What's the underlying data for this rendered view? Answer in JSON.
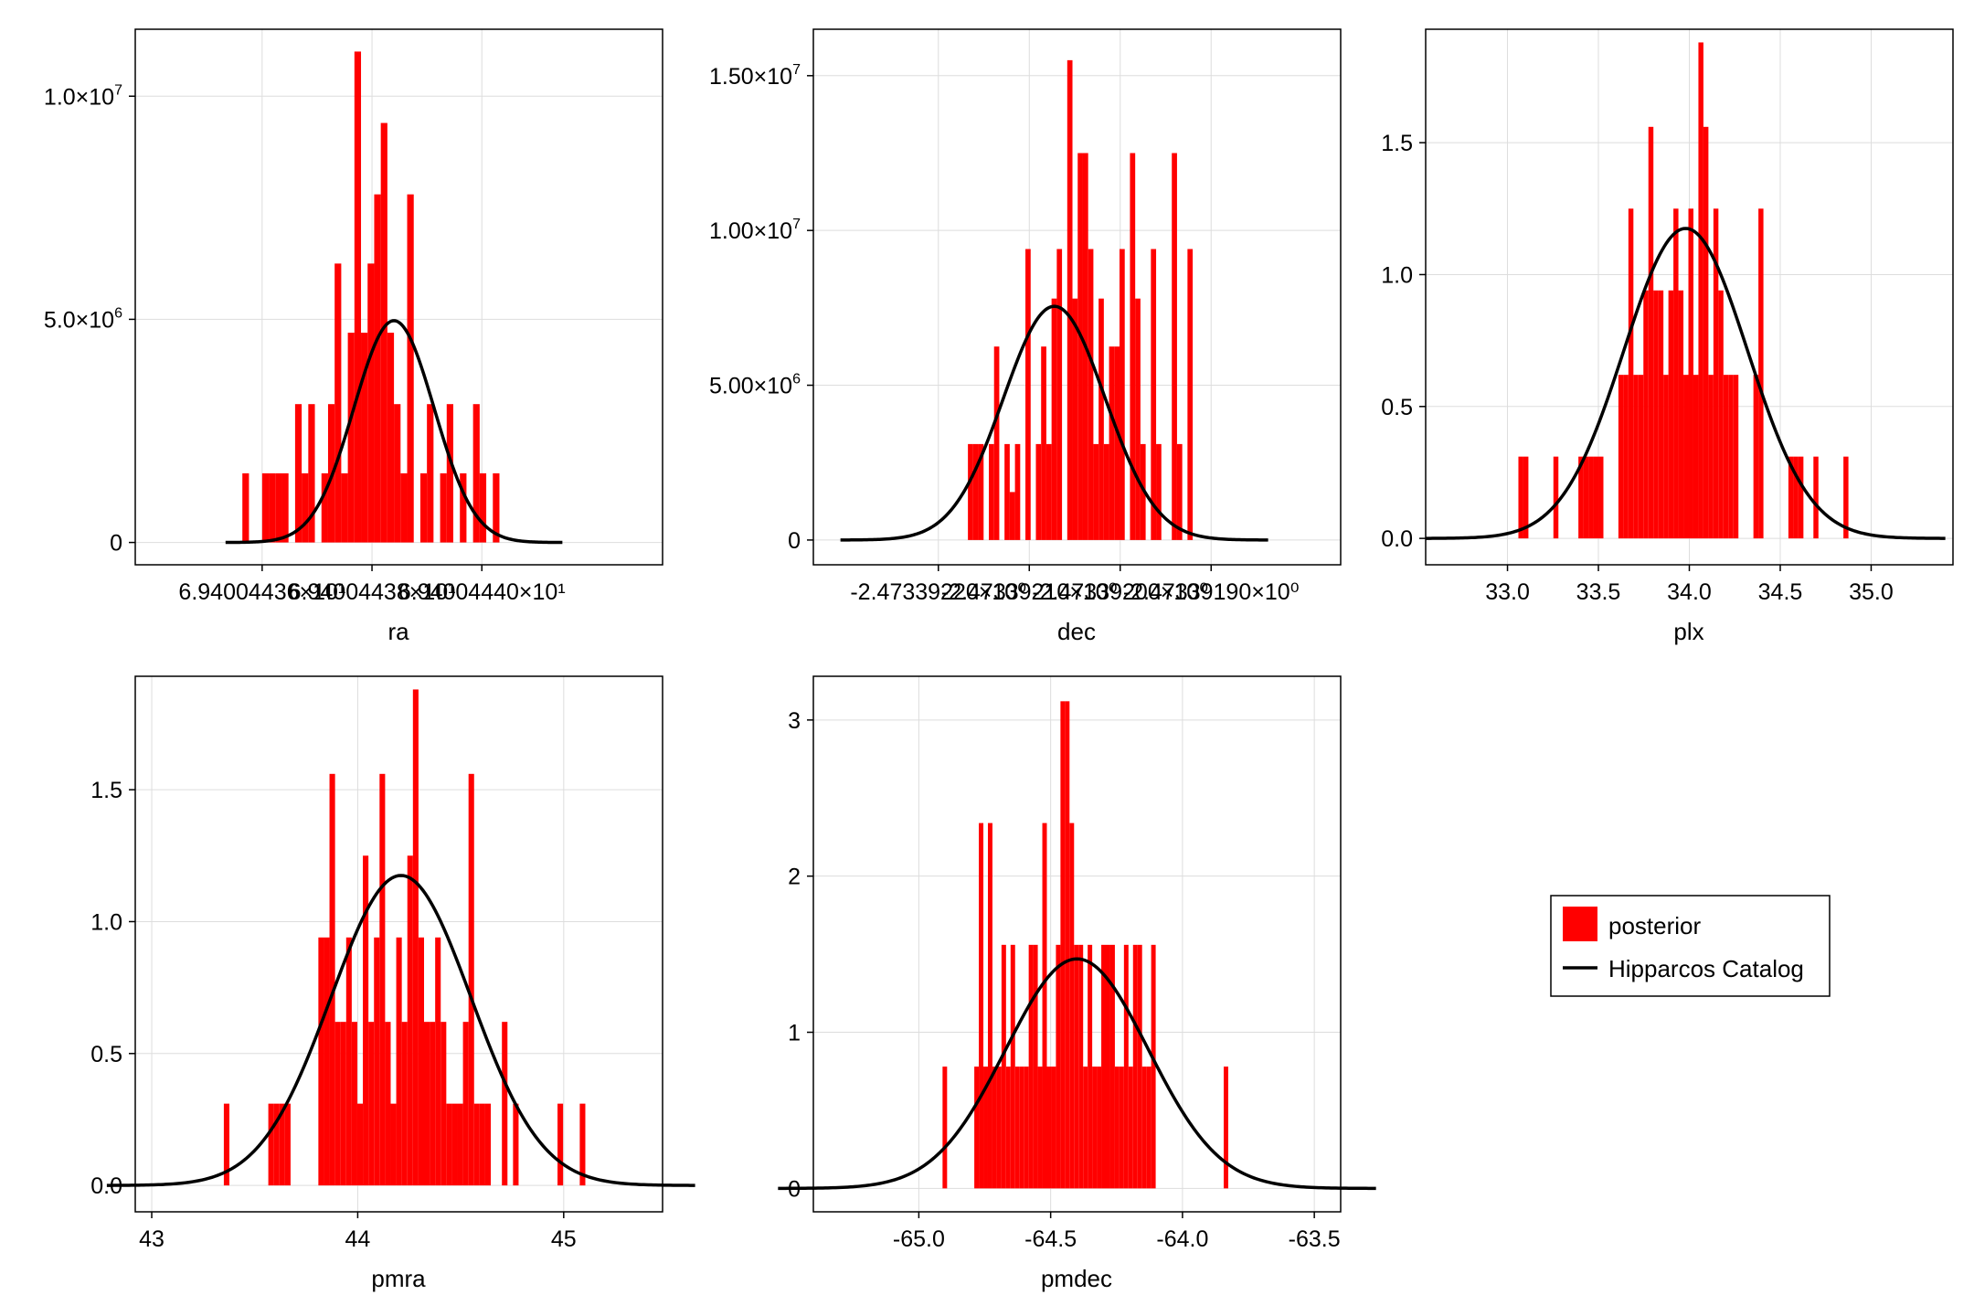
{
  "colors": {
    "bar": "#ff0000",
    "curve": "#000000",
    "grid": "#dddddd",
    "frame": "#000000"
  },
  "legend": {
    "items": [
      {
        "label": "posterior",
        "kind": "patch",
        "color": "#ff0000"
      },
      {
        "label": "Hipparcos Catalog",
        "kind": "line",
        "color": "#000000"
      }
    ]
  },
  "chart_data": [
    {
      "id": "ra",
      "type": "bar",
      "xlabel": "ra",
      "xlim": [
        -4.31,
        5.29
      ],
      "ylim": [
        -0.5,
        11.5
      ],
      "y_display_scale": 1000000,
      "xticks": [
        {
          "value": -2.0,
          "label": "6.94004436×10¹"
        },
        {
          "value": 0.0,
          "label": "6.94004438×10¹"
        },
        {
          "value": 2.0,
          "label": "6.94004440×10¹"
        }
      ],
      "yticks": [
        {
          "value": 0,
          "base": "0",
          "exp": ""
        },
        {
          "value": 5,
          "base": "5.0×10",
          "exp": "6"
        },
        {
          "value": 10,
          "base": "1.0×10",
          "exp": "7"
        }
      ],
      "gaussian": {
        "mean": 0.4,
        "sd": 0.73,
        "peak": 4.97
      },
      "bins": {
        "start": -2.36,
        "width": 0.12,
        "values": [
          1.55,
          0,
          0,
          1.55,
          1.55,
          1.55,
          1.55,
          0,
          3.1,
          1.55,
          3.1,
          0,
          1.55,
          3.1,
          6.25,
          1.55,
          4.7,
          11,
          4.7,
          6.25,
          7.8,
          9.4,
          4.7,
          3.1,
          1.55,
          7.8,
          0,
          1.55,
          3.1,
          0,
          1.55,
          3.1,
          0,
          1.55,
          0,
          3.1,
          1.55,
          0,
          1.55
        ]
      }
    },
    {
      "id": "dec",
      "type": "bar",
      "xlabel": "dec",
      "xlim": [
        -4.75,
        6.85
      ],
      "ylim": [
        -0.8,
        16.5
      ],
      "y_display_scale": 1000000,
      "xticks": [
        {
          "value": -2.0,
          "label": "-2.47339220×10⁰"
        },
        {
          "value": 0.0,
          "label": "-2.47339210×10⁰"
        },
        {
          "value": 2.0,
          "label": "-2.47339200×10⁰"
        },
        {
          "value": 4.0,
          "label": "-2.47339190×10⁰"
        }
      ],
      "yticks": [
        {
          "value": 0,
          "base": "0",
          "exp": ""
        },
        {
          "value": 5,
          "base": "5.00×10",
          "exp": "6"
        },
        {
          "value": 10,
          "base": "1.00×10",
          "exp": "7"
        },
        {
          "value": 15,
          "base": "1.50×10",
          "exp": "7"
        }
      ],
      "gaussian": {
        "mean": 0.55,
        "sd": 1.12,
        "peak": 7.55
      },
      "bins": {
        "start": -1.35,
        "width": 0.115,
        "values": [
          3.1,
          3.1,
          3.1,
          0,
          3.1,
          6.25,
          0,
          3.1,
          1.55,
          3.1,
          0,
          9.4,
          0,
          3.1,
          6.25,
          3.1,
          7.8,
          9.4,
          0,
          15.5,
          7.8,
          12.5,
          12.5,
          9.4,
          3.1,
          7.8,
          3.1,
          6.25,
          6.25,
          9.4,
          0,
          12.5,
          7.8,
          3.1,
          0,
          9.4,
          3.1,
          0,
          0,
          12.5,
          3.1,
          0,
          9.4
        ]
      }
    },
    {
      "id": "plx",
      "type": "bar",
      "xlabel": "plx",
      "xlim": [
        32.55,
        35.45
      ],
      "ylim": [
        -0.1,
        1.93
      ],
      "y_display_scale": 1,
      "xticks": [
        {
          "value": 33.0,
          "label": "33.0"
        },
        {
          "value": 33.5,
          "label": "33.5"
        },
        {
          "value": 34.0,
          "label": "34.0"
        },
        {
          "value": 34.5,
          "label": "34.5"
        },
        {
          "value": 35.0,
          "label": "35.0"
        }
      ],
      "yticks": [
        {
          "value": 0.0,
          "base": "0.0",
          "exp": ""
        },
        {
          "value": 0.5,
          "base": "0.5",
          "exp": ""
        },
        {
          "value": 1.0,
          "base": "1.0",
          "exp": ""
        },
        {
          "value": 1.5,
          "base": "1.5",
          "exp": ""
        }
      ],
      "gaussian": {
        "mean": 33.98,
        "sd": 0.34,
        "peak": 1.175
      },
      "bins": {
        "start": 33.06,
        "width": 0.0275,
        "values": [
          0.31,
          0.31,
          0,
          0,
          0,
          0,
          0,
          0.31,
          0,
          0,
          0,
          0,
          0.31,
          0.31,
          0.31,
          0.31,
          0.31,
          0,
          0,
          0,
          0.62,
          0.62,
          1.25,
          0.62,
          0.62,
          0.94,
          1.56,
          0.94,
          0.94,
          0.62,
          0.94,
          1.25,
          0.94,
          0.62,
          1.25,
          0.62,
          1.88,
          1.56,
          0.62,
          1.25,
          0.94,
          0.62,
          0.62,
          0.62,
          0,
          0,
          0,
          0.62,
          1.25,
          0,
          0,
          0,
          0,
          0,
          0.31,
          0.31,
          0.31,
          0,
          0,
          0.31,
          0,
          0,
          0,
          0,
          0,
          0.31
        ]
      }
    },
    {
      "id": "pmra",
      "type": "bar",
      "xlabel": "pmra",
      "xlim": [
        42.92,
        45.48
      ],
      "ylim": [
        -0.1,
        1.93
      ],
      "y_display_scale": 1,
      "xticks": [
        {
          "value": 43.0,
          "label": "43"
        },
        {
          "value": 44.0,
          "label": "44"
        },
        {
          "value": 45.0,
          "label": "45"
        }
      ],
      "yticks": [
        {
          "value": 0.0,
          "base": "0.0",
          "exp": ""
        },
        {
          "value": 0.5,
          "base": "0.5",
          "exp": ""
        },
        {
          "value": 1.0,
          "base": "1.0",
          "exp": ""
        },
        {
          "value": 1.5,
          "base": "1.5",
          "exp": ""
        }
      ],
      "gaussian": {
        "mean": 44.21,
        "sd": 0.34,
        "peak": 1.175
      },
      "bins": {
        "start": 43.35,
        "width": 0.027,
        "values": [
          0.31,
          0,
          0,
          0,
          0,
          0,
          0,
          0,
          0.31,
          0.31,
          0.31,
          0.31,
          0,
          0,
          0,
          0,
          0,
          0.94,
          0.94,
          1.56,
          0.62,
          0.62,
          0.94,
          0.62,
          0.31,
          1.25,
          0.62,
          0.94,
          1.56,
          0.62,
          0.31,
          0.94,
          0.62,
          1.25,
          1.88,
          0.94,
          0.62,
          0.62,
          0.94,
          0.62,
          0.31,
          0.31,
          0.31,
          0.62,
          1.56,
          0.31,
          0.31,
          0.31,
          0,
          0,
          0.62,
          0,
          0.31,
          0,
          0,
          0,
          0,
          0,
          0,
          0,
          0.31,
          0,
          0,
          0,
          0.31
        ]
      }
    },
    {
      "id": "pmdec",
      "type": "bar",
      "xlabel": "pmdec",
      "xlim": [
        -65.4,
        -63.4
      ],
      "ylim": [
        -0.15,
        3.28
      ],
      "y_display_scale": 1,
      "xticks": [
        {
          "value": -65.0,
          "label": "-65.0"
        },
        {
          "value": -64.5,
          "label": "-64.5"
        },
        {
          "value": -64.0,
          "label": "-64.0"
        },
        {
          "value": -63.5,
          "label": "-63.5"
        }
      ],
      "yticks": [
        {
          "value": 0,
          "base": "0",
          "exp": ""
        },
        {
          "value": 1,
          "base": "1",
          "exp": ""
        },
        {
          "value": 2,
          "base": "2",
          "exp": ""
        },
        {
          "value": 3,
          "base": "3",
          "exp": ""
        }
      ],
      "gaussian": {
        "mean": -64.4,
        "sd": 0.27,
        "peak": 1.47
      },
      "bins": {
        "start": -64.91,
        "width": 0.0172,
        "values": [
          0.78,
          0,
          0,
          0,
          0,
          0,
          0,
          0.78,
          2.34,
          0.78,
          2.34,
          0.78,
          0.78,
          1.56,
          0.78,
          1.56,
          0.78,
          0.78,
          0.78,
          1.56,
          1.56,
          0.78,
          2.34,
          0.78,
          0.78,
          1.56,
          3.12,
          3.12,
          2.34,
          1.56,
          1.56,
          0.78,
          1.56,
          0.78,
          0.78,
          1.56,
          1.56,
          1.56,
          0.78,
          0.78,
          1.56,
          0.78,
          1.56,
          1.56,
          0.78,
          0.78,
          1.56,
          0,
          0,
          0,
          0,
          0,
          0,
          0,
          0,
          0,
          0,
          0,
          0,
          0,
          0,
          0,
          0.78
        ]
      }
    }
  ]
}
